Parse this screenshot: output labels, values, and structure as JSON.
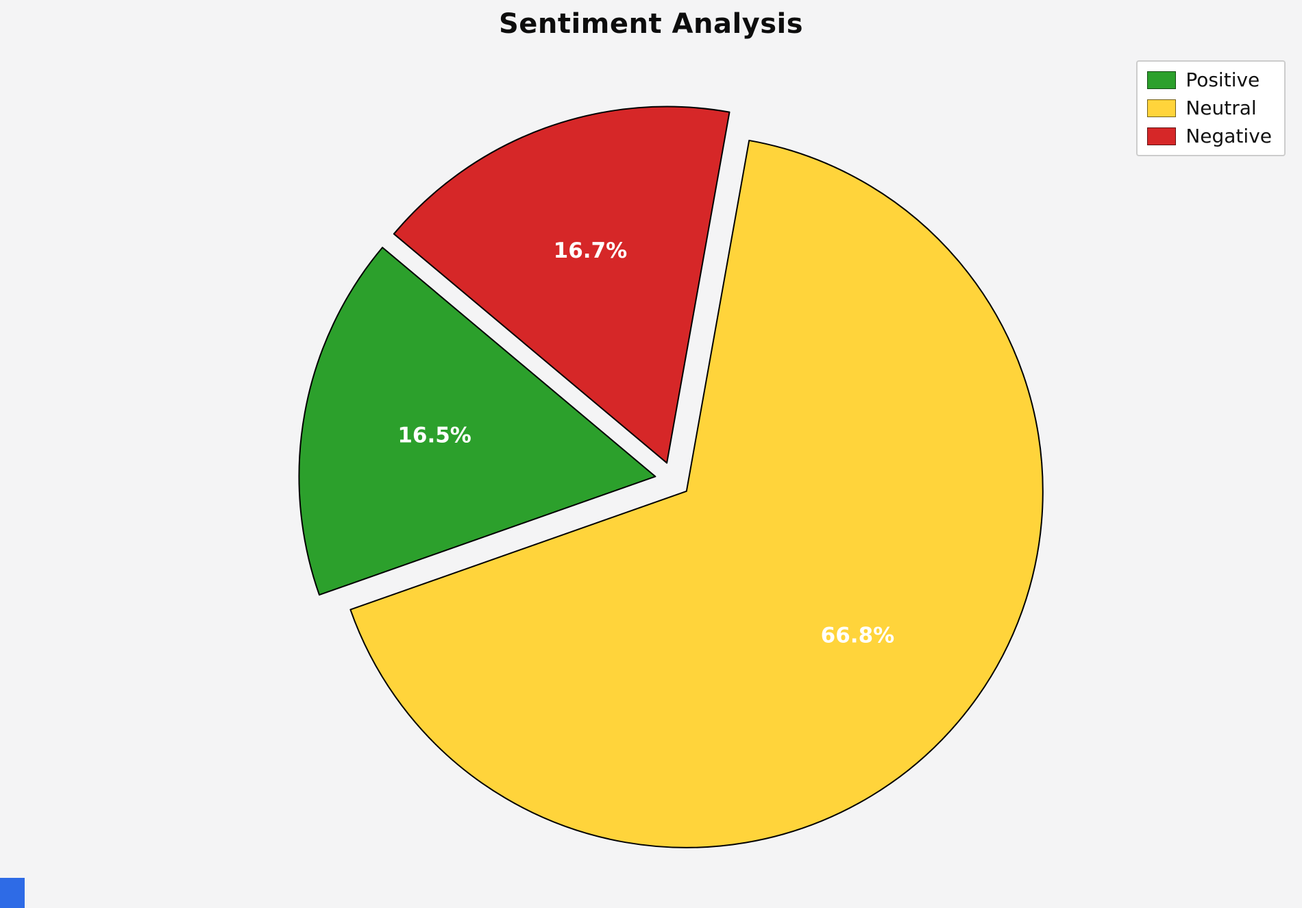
{
  "title": "Sentiment Analysis",
  "background_color": "#f4f4f5",
  "chart_data": {
    "type": "pie",
    "title": "Sentiment Analysis",
    "labels": [
      "Positive",
      "Neutral",
      "Negative"
    ],
    "values": [
      16.5,
      66.8,
      16.7
    ],
    "value_labels": [
      "16.5%",
      "66.8%",
      "16.7%"
    ],
    "colors": [
      "#2CA02C",
      "#FFD43B",
      "#D62728"
    ],
    "edge_color": "#000000",
    "label_color": "#ffffff",
    "start_angle": 140,
    "counterclockwise": true,
    "explode": 0.05,
    "pct_distance": 0.63,
    "legend_position": "upper right",
    "legend_entries": [
      "Positive",
      "Neutral",
      "Negative"
    ]
  },
  "legend": {
    "items": [
      {
        "label": "Positive",
        "color": "#2CA02C"
      },
      {
        "label": "Neutral",
        "color": "#FFD43B"
      },
      {
        "label": "Negative",
        "color": "#D62728"
      }
    ]
  },
  "decorations": {
    "corner_mark_color": "#2e6be6"
  }
}
